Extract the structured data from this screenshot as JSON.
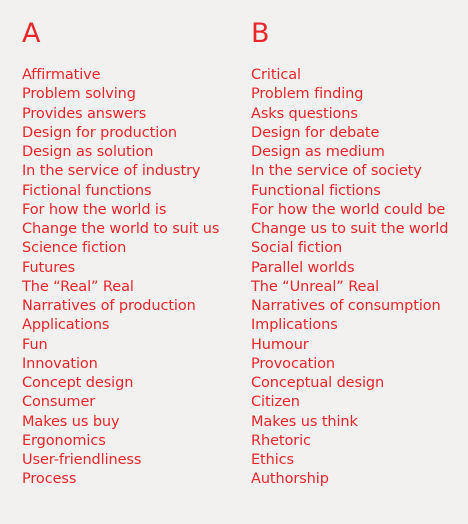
{
  "columns": [
    {
      "heading": "A",
      "items": [
        "Affirmative",
        "Problem solving",
        "Provides answers",
        "Design for production",
        "Design as solution",
        "In the service of industry",
        "Fictional functions",
        "For how the world is",
        "Change the world to suit us",
        "Science fiction",
        "Futures",
        "The “Real” Real",
        "Narratives of production",
        "Applications",
        "Fun",
        "Innovation",
        "Concept design",
        "Consumer",
        "Makes us buy",
        "Ergonomics",
        "User-friendliness",
        "Process"
      ]
    },
    {
      "heading": "B",
      "items": [
        "Critical",
        "Problem finding",
        "Asks questions",
        "Design for debate",
        "Design as medium",
        "In the service of society",
        "Functional fictions",
        "For how the world could be",
        "Change us to suit the world",
        "Social fiction",
        "Parallel worlds",
        "The “Unreal” Real",
        "Narratives of consumption",
        "Implications",
        "Humour",
        "Provocation",
        "Conceptual design",
        "Citizen",
        "Makes us think",
        "Rhetoric",
        "Ethics",
        "Authorship"
      ]
    }
  ],
  "colors": {
    "text": "#e8262b",
    "background": "#f2f1ef"
  }
}
